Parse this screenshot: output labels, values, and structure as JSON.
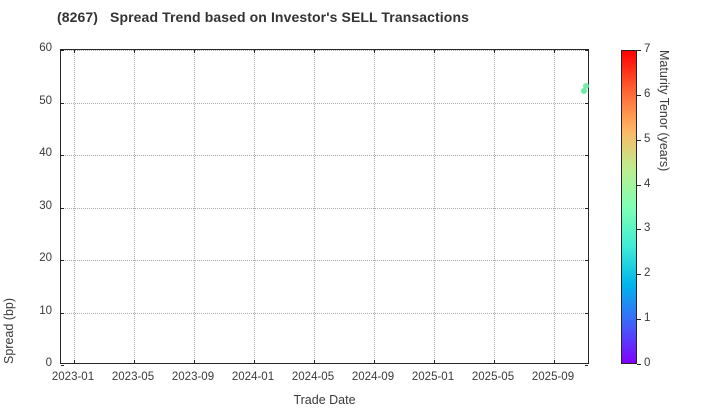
{
  "title": "(8267)   Spread Trend based on Investor's SELL Transactions",
  "colors": {
    "background": "#ffffff",
    "spine": "#262626",
    "grid": "#aaaaaa",
    "text": "#333333"
  },
  "chart_data": {
    "type": "scatter",
    "title": "(8267)   Spread Trend based on Investor's SELL Transactions",
    "xlabel": "Trade Date",
    "ylabel": "Spread (bp)",
    "grid": true,
    "x_axis": {
      "min": "2022-12-05",
      "max": "2025-11-13",
      "tick_labels": [
        "2023-01",
        "2023-05",
        "2023-09",
        "2024-01",
        "2024-05",
        "2024-09",
        "2025-01",
        "2025-05",
        "2025-09"
      ]
    },
    "y_axis": {
      "min": 0,
      "max": 60,
      "ticks": [
        0,
        10,
        20,
        30,
        40,
        50,
        60
      ]
    },
    "points": [
      {
        "date": "2025-11-05",
        "spread_bp": 53.2,
        "maturity_years": 3.4,
        "color": "#6BF0A5"
      },
      {
        "date": "2025-11-01",
        "spread_bp": 52.1,
        "maturity_years": 3.4,
        "color": "#60EDA0"
      }
    ],
    "colorbar": {
      "label": "Maturity Tenor (years)",
      "min": 0,
      "max": 7,
      "ticks": [
        0,
        1,
        2,
        3,
        4,
        5,
        6,
        7
      ],
      "colormap": "rainbow",
      "gradient_stops": [
        {
          "pos": 0.0,
          "color": "#8000FF"
        },
        {
          "pos": 0.125,
          "color": "#4062FA"
        },
        {
          "pos": 0.25,
          "color": "#00B4EC"
        },
        {
          "pos": 0.375,
          "color": "#40ECD4"
        },
        {
          "pos": 0.5,
          "color": "#80FFB4"
        },
        {
          "pos": 0.625,
          "color": "#BFEC8E"
        },
        {
          "pos": 0.75,
          "color": "#FFB462"
        },
        {
          "pos": 0.875,
          "color": "#FF6232"
        },
        {
          "pos": 1.0,
          "color": "#FF0000"
        }
      ]
    }
  }
}
